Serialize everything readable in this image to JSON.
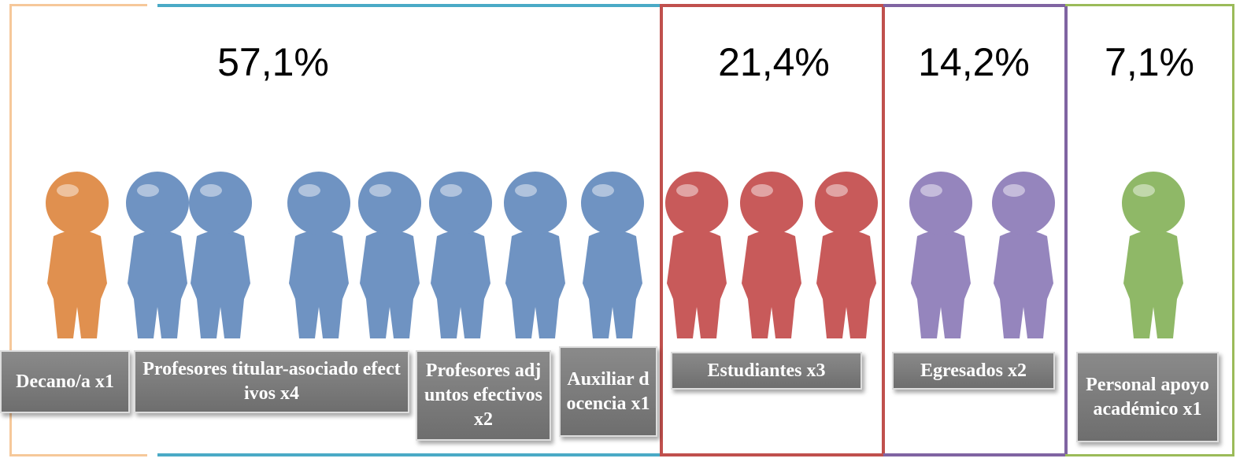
{
  "groups": [
    {
      "percent": "57,1%",
      "labels": [
        "Decano/a x1",
        "Profesores titular-asociado efectivos x4",
        "Profesores adjuntos efectivos x2",
        "Auxiliar docencia x1"
      ]
    },
    {
      "percent": "21,4%",
      "labels": [
        "Estudiantes x3"
      ]
    },
    {
      "percent": "14,2%",
      "labels": [
        "Egresados x2"
      ]
    },
    {
      "percent": "7,1%",
      "labels": [
        "Personal apoyo académico x1"
      ]
    }
  ]
}
